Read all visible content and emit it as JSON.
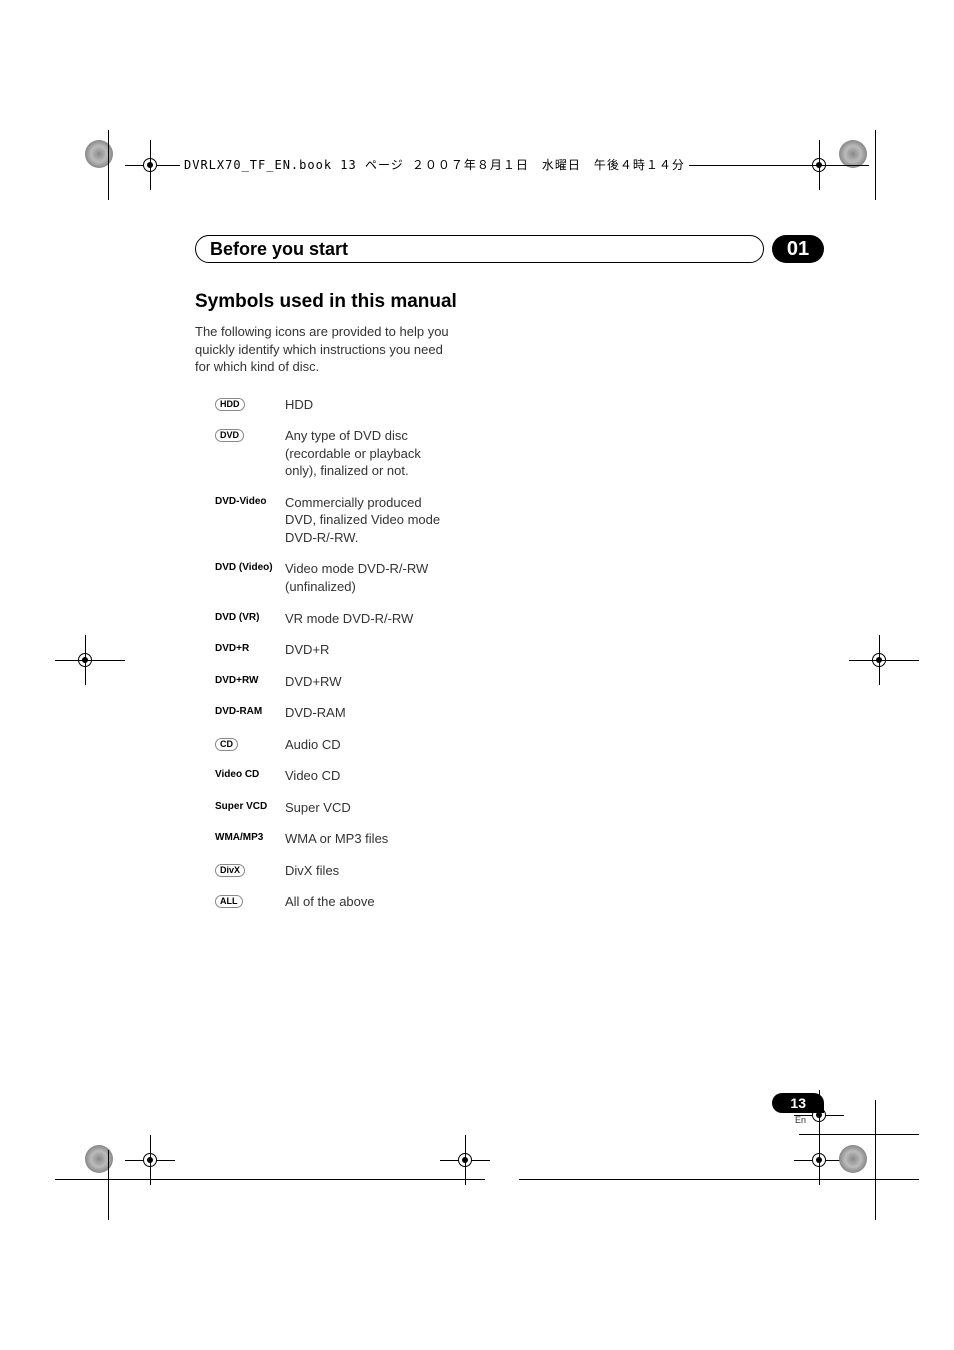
{
  "header_filename": "DVRLX70_TF_EN.book  13 ページ  ２００７年８月１日　水曜日　午後４時１４分",
  "chapter": {
    "title": "Before you start",
    "number": "01"
  },
  "section_heading": "Symbols used in this manual",
  "intro": "The following icons are provided to help you quickly identify which instructions you need for which kind of disc.",
  "symbols": [
    {
      "icon": "HDD",
      "style": "oval",
      "desc": "HDD"
    },
    {
      "icon": "DVD",
      "style": "oval",
      "desc": "Any type of DVD disc (recordable or playback only), finalized or not."
    },
    {
      "icon": "DVD-Video",
      "style": "plain",
      "desc": "Commercially produced DVD, finalized Video mode DVD-R/-RW."
    },
    {
      "icon": "DVD (Video)",
      "style": "plain",
      "desc": "Video mode DVD-R/-RW (unfinalized)"
    },
    {
      "icon": "DVD (VR)",
      "style": "plain",
      "desc": "VR mode DVD-R/-RW"
    },
    {
      "icon": "DVD+R",
      "style": "plain",
      "desc": "DVD+R"
    },
    {
      "icon": "DVD+RW",
      "style": "plain",
      "desc": "DVD+RW"
    },
    {
      "icon": "DVD-RAM",
      "style": "plain",
      "desc": "DVD-RAM"
    },
    {
      "icon": "CD",
      "style": "oval",
      "desc": "Audio CD"
    },
    {
      "icon": "Video CD",
      "style": "plain",
      "desc": "Video CD"
    },
    {
      "icon": "Super VCD",
      "style": "plain",
      "desc": "Super VCD"
    },
    {
      "icon": "WMA/MP3",
      "style": "plain",
      "desc": "WMA or MP3 files"
    },
    {
      "icon": "DivX",
      "style": "oval",
      "desc": "DivX files"
    },
    {
      "icon": "ALL",
      "style": "oval",
      "desc": "All of the above"
    }
  ],
  "footer": {
    "page_number": "13",
    "language": "En"
  },
  "colors": {
    "text": "#000000",
    "body_text": "#333333",
    "background": "#ffffff",
    "pill_bg": "#000000",
    "pill_fg": "#ffffff"
  },
  "typography": {
    "chapter_title_size": 18,
    "chapter_num_size": 20,
    "section_heading_size": 19,
    "body_size": 13,
    "icon_label_size": 10,
    "footer_page_size": 14,
    "footer_lang_size": 9
  },
  "crop_marks": {
    "positions": [
      "top-left",
      "top-right",
      "bottom-left",
      "bottom-right",
      "mid-left",
      "mid-right",
      "mid-bottom"
    ]
  }
}
